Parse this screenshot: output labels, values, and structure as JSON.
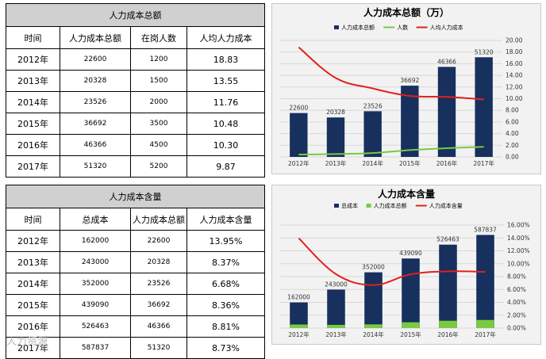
{
  "table1": {
    "title": "人力成本总额",
    "headers": [
      "时间",
      "人力成本总额",
      "在岗人数",
      "人均人力成本"
    ],
    "rows": [
      [
        "2012年",
        "22600",
        "1200",
        "18.83"
      ],
      [
        "2013年",
        "20328",
        "1500",
        "13.55"
      ],
      [
        "2014年",
        "23526",
        "2000",
        "11.76"
      ],
      [
        "2015年",
        "36692",
        "3500",
        "10.48"
      ],
      [
        "2016年",
        "46366",
        "4500",
        "10.30"
      ],
      [
        "2017年",
        "51320",
        "5200",
        "9.87"
      ]
    ]
  },
  "table2": {
    "title": "人力成本含量",
    "headers": [
      "时间",
      "总成本",
      "人力成本总额",
      "人力成本含量"
    ],
    "rows": [
      [
        "2012年",
        "162000",
        "22600",
        "13.95%"
      ],
      [
        "2013年",
        "243000",
        "20328",
        "8.37%"
      ],
      [
        "2014年",
        "352000",
        "23526",
        "6.68%"
      ],
      [
        "2015年",
        "439090",
        "36692",
        "8.36%"
      ],
      [
        "2016年",
        "526463",
        "46366",
        "8.81%"
      ],
      [
        "2017年",
        "587837",
        "51320",
        "8.73%"
      ]
    ]
  },
  "watermark": "人力资源",
  "colors": {
    "bar": "#17305e",
    "green": "#7ac943",
    "red": "#e0211d",
    "chart_bg": "#f2f2f2"
  },
  "chart_data": [
    {
      "type": "bar",
      "title": "人力成本总额（万）",
      "categories": [
        "2012年",
        "2013年",
        "2014年",
        "2015年",
        "2016年",
        "2017年"
      ],
      "series": [
        {
          "name": "人力成本总额",
          "kind": "bar",
          "axis": "hidden",
          "values": [
            22600,
            20328,
            23526,
            36692,
            46366,
            51320
          ],
          "labels": [
            "22600",
            "20328",
            "23526",
            "36692",
            "46366",
            "51320"
          ],
          "color": "#17305e"
        },
        {
          "name": "人数",
          "kind": "line",
          "axis": "hidden",
          "values": [
            1200,
            1500,
            2000,
            3500,
            4500,
            5200
          ],
          "color": "#7ac943"
        },
        {
          "name": "人均人力成本",
          "kind": "line-smooth",
          "axis": "right",
          "values": [
            18.83,
            13.55,
            11.76,
            10.48,
            10.3,
            9.87
          ],
          "color": "#e0211d"
        }
      ],
      "bar_axis_max": 60000,
      "green_axis_max": 60000,
      "right_axis": {
        "min": 0,
        "max": 20,
        "ticks": [
          "0.00",
          "2.00",
          "4.00",
          "6.00",
          "8.00",
          "10.00",
          "12.00",
          "14.00",
          "16.00",
          "18.00",
          "20.00"
        ]
      },
      "grid": true,
      "legend": "top"
    },
    {
      "type": "bar",
      "title": "人力成本含量",
      "categories": [
        "2012年",
        "2013年",
        "2014年",
        "2015年",
        "2016年",
        "2017年"
      ],
      "series": [
        {
          "name": "总成本",
          "kind": "bar",
          "axis": "hidden",
          "values": [
            162000,
            243000,
            352000,
            439090,
            526463,
            587837
          ],
          "labels": [
            "162000",
            "243000",
            "352000",
            "439090",
            "526463",
            "587837"
          ],
          "color": "#17305e"
        },
        {
          "name": "人力成本总额",
          "kind": "bar",
          "axis": "hidden",
          "values": [
            22600,
            20328,
            23526,
            36692,
            46366,
            51320
          ],
          "color": "#7ac943"
        },
        {
          "name": "人力成本含量",
          "kind": "line-smooth",
          "axis": "right",
          "values": [
            13.95,
            8.37,
            6.68,
            8.36,
            8.81,
            8.73
          ],
          "color": "#e0211d"
        }
      ],
      "bar_axis_max": 650000,
      "right_axis": {
        "min": 0,
        "max": 16,
        "ticks": [
          "0.00%",
          "2.00%",
          "4.00%",
          "6.00%",
          "8.00%",
          "10.00%",
          "12.00%",
          "14.00%",
          "16.00%"
        ]
      },
      "grid": true,
      "legend": "top"
    }
  ]
}
